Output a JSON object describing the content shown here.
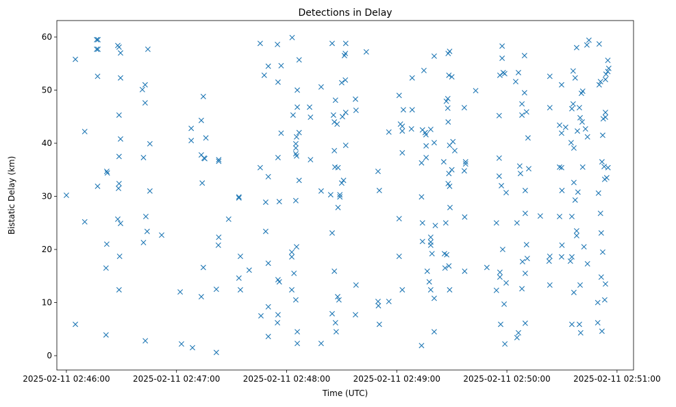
{
  "chart_data": {
    "type": "scatter",
    "title": "Detections in Delay",
    "xlabel": "Time (UTC)",
    "ylabel": "Bistatic Delay (km)",
    "x_reference": "2025-02-11 02:46:00",
    "x_units": "seconds since x_reference",
    "xlim": [
      -5.2,
      309
    ],
    "ylim": [
      -2.7,
      63.1
    ],
    "x_ticks": [
      {
        "value": 0,
        "label": "2025-02-11 02:46:00"
      },
      {
        "value": 60,
        "label": "2025-02-11 02:47:00"
      },
      {
        "value": 120,
        "label": "2025-02-11 02:48:00"
      },
      {
        "value": 180,
        "label": "2025-02-11 02:49:00"
      },
      {
        "value": 240,
        "label": "2025-02-11 02:50:00"
      },
      {
        "value": 300,
        "label": "2025-02-11 02:51:00"
      }
    ],
    "y_ticks": [
      {
        "value": 0,
        "label": "0"
      },
      {
        "value": 10,
        "label": "10"
      },
      {
        "value": 20,
        "label": "20"
      },
      {
        "value": 30,
        "label": "30"
      },
      {
        "value": 40,
        "label": "40"
      },
      {
        "value": 50,
        "label": "50"
      },
      {
        "value": 60,
        "label": "60"
      }
    ],
    "grid": false,
    "marker": "x",
    "color": "#1f77b4",
    "points": [
      [
        0,
        30.2
      ],
      [
        4.9,
        55.8
      ],
      [
        4.9,
        5.9
      ],
      [
        10,
        42.2
      ],
      [
        10,
        25.2
      ],
      [
        16.5,
        59.5
      ],
      [
        16.5,
        57.7
      ],
      [
        17.2,
        59.5
      ],
      [
        17.2,
        57.7
      ],
      [
        17,
        52.6
      ],
      [
        17,
        31.9
      ],
      [
        22,
        34.7
      ],
      [
        22.3,
        34.4
      ],
      [
        22,
        21
      ],
      [
        21.6,
        16.5
      ],
      [
        21.6,
        3.9
      ],
      [
        28,
        58.4
      ],
      [
        28.7,
        58.1
      ],
      [
        29.5,
        57
      ],
      [
        29.5,
        52.3
      ],
      [
        28.7,
        45.3
      ],
      [
        29.5,
        40.8
      ],
      [
        28.7,
        37.5
      ],
      [
        28.7,
        32.4
      ],
      [
        28.4,
        31.5
      ],
      [
        28,
        25.7
      ],
      [
        29.5,
        24.9
      ],
      [
        29,
        18.7
      ],
      [
        28.7,
        12.4
      ],
      [
        41.4,
        50.1
      ],
      [
        42.9,
        51
      ],
      [
        42.9,
        47.6
      ],
      [
        42,
        37.3
      ],
      [
        43.3,
        26.2
      ],
      [
        44,
        23.4
      ],
      [
        42,
        21.3
      ],
      [
        43,
        2.8
      ],
      [
        44.4,
        57.7
      ],
      [
        45.5,
        39.9
      ],
      [
        45.5,
        31
      ],
      [
        51.9,
        22.7
      ],
      [
        62,
        12
      ],
      [
        62.7,
        2.2
      ],
      [
        68.7,
        1.5
      ],
      [
        68,
        42.8
      ],
      [
        68,
        40.5
      ],
      [
        73.5,
        44.3
      ],
      [
        74.6,
        48.8
      ],
      [
        73.5,
        37.8
      ],
      [
        75,
        37.2
      ],
      [
        75.4,
        37.1
      ],
      [
        76,
        41
      ],
      [
        74,
        32.5
      ],
      [
        74.6,
        16.6
      ],
      [
        73.5,
        11.1
      ],
      [
        83,
        36.9
      ],
      [
        83,
        36.6
      ],
      [
        83,
        22.3
      ],
      [
        82.8,
        20.8
      ],
      [
        81.7,
        12.5
      ],
      [
        81.7,
        0.6
      ],
      [
        88.4,
        25.7
      ],
      [
        94,
        29.9
      ],
      [
        94,
        29.7
      ],
      [
        94.8,
        18.7
      ],
      [
        94,
        14.6
      ],
      [
        94.8,
        12.4
      ],
      [
        99.6,
        16.1
      ],
      [
        105.6,
        58.8
      ],
      [
        107.8,
        52.8
      ],
      [
        110,
        54.5
      ],
      [
        117,
        54.6
      ],
      [
        115,
        58.6
      ],
      [
        115.3,
        51.5
      ],
      [
        105.6,
        35.4
      ],
      [
        110,
        33.7
      ],
      [
        108.6,
        28.9
      ],
      [
        116,
        29
      ],
      [
        108.6,
        23.4
      ],
      [
        110,
        17.4
      ],
      [
        106,
        7.5
      ],
      [
        110,
        9.2
      ],
      [
        110,
        3.6
      ],
      [
        115.3,
        14.3
      ],
      [
        116,
        13.9
      ],
      [
        115.3,
        7.7
      ],
      [
        115,
        6.2
      ],
      [
        115.3,
        37.3
      ],
      [
        117,
        41.9
      ],
      [
        123,
        59.9
      ],
      [
        126.8,
        55.7
      ],
      [
        123.5,
        45.3
      ],
      [
        125.8,
        50
      ],
      [
        125.8,
        46.8
      ],
      [
        125,
        39.9
      ],
      [
        125,
        39.1
      ],
      [
        125,
        38
      ],
      [
        125.4,
        37.6
      ],
      [
        125.4,
        41.2
      ],
      [
        126.8,
        42
      ],
      [
        126.8,
        33
      ],
      [
        125,
        29.2
      ],
      [
        122.8,
        19.5
      ],
      [
        122.8,
        18.6
      ],
      [
        125.4,
        20.5
      ],
      [
        124,
        15.5
      ],
      [
        122.8,
        12.4
      ],
      [
        125,
        10.5
      ],
      [
        125.8,
        4.5
      ],
      [
        125.8,
        2.3
      ],
      [
        132.5,
        46.8
      ],
      [
        133,
        44.9
      ],
      [
        133,
        36.9
      ],
      [
        138.8,
        50.6
      ],
      [
        138.8,
        31
      ],
      [
        138.8,
        2.3
      ],
      [
        144.8,
        58.8
      ],
      [
        144,
        30.3
      ],
      [
        144.8,
        23.1
      ],
      [
        145.5,
        45.3
      ],
      [
        146,
        44
      ],
      [
        147.5,
        43.6
      ],
      [
        146.6,
        48.1
      ],
      [
        146,
        38.6
      ],
      [
        146.3,
        35.5
      ],
      [
        148,
        35.4
      ],
      [
        149,
        30.3
      ],
      [
        149,
        29.9
      ],
      [
        148,
        27.9
      ],
      [
        146,
        15.9
      ],
      [
        144.8,
        7.9
      ],
      [
        146.6,
        6.2
      ],
      [
        147,
        4.5
      ],
      [
        147.8,
        11.1
      ],
      [
        148.5,
        10.5
      ],
      [
        150.4,
        45
      ],
      [
        150,
        51.4
      ],
      [
        152,
        51.9
      ],
      [
        152.2,
        58.8
      ],
      [
        152,
        56.9
      ],
      [
        151.5,
        56.5
      ],
      [
        152.2,
        45.8
      ],
      [
        152.2,
        39.6
      ],
      [
        151,
        33
      ],
      [
        150,
        32.5
      ],
      [
        157.5,
        48.3
      ],
      [
        157.8,
        46.2
      ],
      [
        157.8,
        13.3
      ],
      [
        157.5,
        7.7
      ],
      [
        163.4,
        57.2
      ],
      [
        169.8,
        34.7
      ],
      [
        169.8,
        10.2
      ],
      [
        170,
        9.4
      ],
      [
        170.5,
        31.1
      ],
      [
        170.5,
        5.9
      ],
      [
        175.7,
        10.2
      ],
      [
        175.7,
        42.1
      ],
      [
        181.3,
        49
      ],
      [
        182,
        43.6
      ],
      [
        183,
        43.2
      ],
      [
        183.6,
        46.3
      ],
      [
        183,
        42.3
      ],
      [
        183,
        38.2
      ],
      [
        181.3,
        25.8
      ],
      [
        181.3,
        18.7
      ],
      [
        183,
        12.4
      ],
      [
        188.4,
        52.3
      ],
      [
        188.4,
        46.3
      ],
      [
        188,
        42.7
      ],
      [
        194.8,
        53.7
      ],
      [
        194,
        42.5
      ],
      [
        195.5,
        42
      ],
      [
        195.9,
        41.6
      ],
      [
        193.5,
        36.3
      ],
      [
        196,
        37.3
      ],
      [
        196,
        39.5
      ],
      [
        198.5,
        42.6
      ],
      [
        200.4,
        40.1
      ],
      [
        200.4,
        56.4
      ],
      [
        193.5,
        29.9
      ],
      [
        194,
        25
      ],
      [
        194,
        21.5
      ],
      [
        198.5,
        22.3
      ],
      [
        198.5,
        20.8
      ],
      [
        199.2,
        19.2
      ],
      [
        196.6,
        15.9
      ],
      [
        197.7,
        13.9
      ],
      [
        198.5,
        12.4
      ],
      [
        200.4,
        10.8
      ],
      [
        200.4,
        4.5
      ],
      [
        193.5,
        1.9
      ],
      [
        198.5,
        21.4
      ],
      [
        201,
        24.5
      ],
      [
        205.6,
        36.5
      ],
      [
        206.7,
        25
      ],
      [
        206,
        19.2
      ],
      [
        207.2,
        19
      ],
      [
        206.3,
        16.5
      ],
      [
        207,
        47.9
      ],
      [
        207.8,
        48.4
      ],
      [
        207.8,
        46.6
      ],
      [
        208,
        56.9
      ],
      [
        208.8,
        57.3
      ],
      [
        208.4,
        52.8
      ],
      [
        210,
        52.5
      ],
      [
        208,
        44
      ],
      [
        208.8,
        39.6
      ],
      [
        210.6,
        40.3
      ],
      [
        211.6,
        38.6
      ],
      [
        208.4,
        34.3
      ],
      [
        210,
        35
      ],
      [
        208,
        32.4
      ],
      [
        208.8,
        31.9
      ],
      [
        209,
        27.9
      ],
      [
        208.4,
        16.9
      ],
      [
        208.8,
        12.4
      ],
      [
        216.8,
        46.7
      ],
      [
        217.5,
        36.5
      ],
      [
        217.5,
        36.1
      ],
      [
        216.8,
        34.8
      ],
      [
        217,
        26.1
      ],
      [
        217,
        15.9
      ],
      [
        223,
        49.9
      ],
      [
        229.1,
        16.6
      ],
      [
        234.3,
        12.3
      ],
      [
        234.3,
        25
      ],
      [
        235.8,
        45.2
      ],
      [
        236.2,
        52.8
      ],
      [
        237.4,
        56
      ],
      [
        237.4,
        58.3
      ],
      [
        238,
        53.3
      ],
      [
        238.8,
        53.1
      ],
      [
        235.8,
        37.2
      ],
      [
        235.8,
        33.8
      ],
      [
        237,
        32
      ],
      [
        236.2,
        15.7
      ],
      [
        236.2,
        14.8
      ],
      [
        236.6,
        5.9
      ],
      [
        237.7,
        20
      ],
      [
        238.5,
        9.7
      ],
      [
        238.9,
        2.2
      ],
      [
        239.6,
        30.7
      ],
      [
        239.6,
        13.7
      ],
      [
        244.8,
        51.6
      ],
      [
        245.5,
        25
      ],
      [
        246.3,
        53.3
      ],
      [
        246.3,
        4.3
      ],
      [
        245.5,
        3.4
      ],
      [
        247,
        35.7
      ],
      [
        247.4,
        34.3
      ],
      [
        248.2,
        45.3
      ],
      [
        248.2,
        47.4
      ],
      [
        248.2,
        12.6
      ],
      [
        248.5,
        17.7
      ],
      [
        249.6,
        56.5
      ],
      [
        249.6,
        49.5
      ],
      [
        250,
        31.1
      ],
      [
        250,
        15.5
      ],
      [
        250,
        6.1
      ],
      [
        250.7,
        20.9
      ],
      [
        250.7,
        45.9
      ],
      [
        251.5,
        41
      ],
      [
        251.9,
        35.2
      ],
      [
        250,
        26.8
      ],
      [
        251.1,
        18.3
      ],
      [
        258.2,
        26.3
      ],
      [
        263.4,
        52.6
      ],
      [
        263.4,
        46.7
      ],
      [
        263.4,
        18.7
      ],
      [
        263,
        17.8
      ],
      [
        263.4,
        13.3
      ],
      [
        268.7,
        43.4
      ],
      [
        268.7,
        35.5
      ],
      [
        269.8,
        35.4
      ],
      [
        269.8,
        51
      ],
      [
        269.8,
        41.9
      ],
      [
        270,
        31.1
      ],
      [
        268.7,
        26.2
      ],
      [
        270,
        20.8
      ],
      [
        269.8,
        18.6
      ],
      [
        272,
        43
      ],
      [
        274.6,
        17.8
      ],
      [
        275.4,
        26.2
      ],
      [
        275,
        40.1
      ],
      [
        275.4,
        46.5
      ],
      [
        276.1,
        47.4
      ],
      [
        276.5,
        39.1
      ],
      [
        276.1,
        53.6
      ],
      [
        277.2,
        52.3
      ],
      [
        278,
        58
      ],
      [
        276.5,
        32.6
      ],
      [
        277.2,
        29.3
      ],
      [
        278.7,
        30.8
      ],
      [
        278,
        22.6
      ],
      [
        278,
        23.5
      ],
      [
        275.4,
        18.6
      ],
      [
        276.5,
        11.9
      ],
      [
        275.4,
        5.9
      ],
      [
        279.5,
        5.9
      ],
      [
        280.2,
        4.3
      ],
      [
        279.9,
        13.3
      ],
      [
        278.4,
        42.3
      ],
      [
        279.5,
        46.7
      ],
      [
        279.9,
        44.8
      ],
      [
        281,
        44
      ],
      [
        280.6,
        49.4
      ],
      [
        281.3,
        49.8
      ],
      [
        281.3,
        35.5
      ],
      [
        282,
        20.5
      ],
      [
        282.8,
        42.7
      ],
      [
        283.9,
        41.2
      ],
      [
        283.6,
        58.5
      ],
      [
        284.7,
        59.4
      ],
      [
        283.9,
        17.3
      ],
      [
        289.5,
        6.2
      ],
      [
        289.5,
        10
      ],
      [
        290.3,
        58.7
      ],
      [
        290.3,
        51
      ],
      [
        291,
        51.6
      ],
      [
        291,
        26.8
      ],
      [
        291.4,
        23.1
      ],
      [
        291.8,
        36.5
      ],
      [
        291.4,
        14.8
      ],
      [
        291.8,
        4.6
      ],
      [
        292.2,
        19.5
      ],
      [
        292.5,
        44.6
      ],
      [
        292.2,
        41.5
      ],
      [
        293,
        35.6
      ],
      [
        293.3,
        33.2
      ],
      [
        293.7,
        45.8
      ],
      [
        293.7,
        44.9
      ],
      [
        293.7,
        13.5
      ],
      [
        294,
        53
      ],
      [
        293.7,
        52
      ],
      [
        295,
        53.5
      ],
      [
        295,
        55.6
      ],
      [
        294.4,
        33.5
      ],
      [
        295.1,
        35.4
      ],
      [
        295.5,
        54.1
      ],
      [
        293.3,
        10.5
      ],
      [
        289.9,
        30.6
      ]
    ]
  }
}
